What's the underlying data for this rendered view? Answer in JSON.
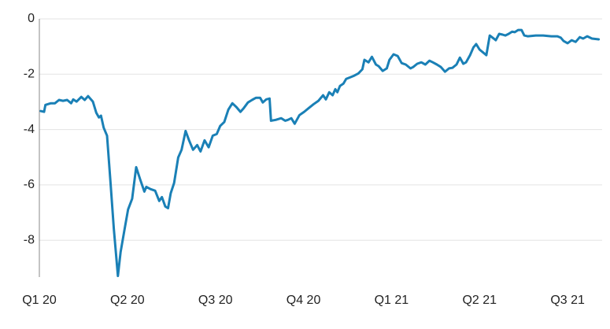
{
  "chart_data": {
    "type": "line",
    "color": "#1a80b6",
    "x": [
      0.2,
      0.7,
      0.9,
      1.7,
      2.3,
      2.9,
      3.5,
      4.1,
      4.7,
      5.0,
      5.5,
      6.2,
      6.7,
      7.2,
      7.9,
      8.4,
      8.8,
      9.1,
      9.5,
      10.0,
      10.5,
      11.0,
      11.6,
      12.0,
      12.6,
      13.1,
      13.7,
      14.3,
      14.9,
      15.5,
      15.8,
      16.4,
      17.1,
      17.7,
      18.1,
      18.6,
      19.0,
      19.4,
      19.9,
      20.5,
      21.0,
      21.6,
      22.1,
      22.7,
      23.3,
      23.8,
      24.4,
      25.0,
      25.6,
      26.2,
      26.7,
      27.3,
      27.9,
      28.5,
      29.1,
      29.7,
      30.2,
      30.8,
      31.4,
      32.0,
      32.6,
      33.0,
      33.5,
      34.0,
      34.2,
      34.9,
      35.7,
      36.3,
      36.7,
      37.2,
      37.7,
      38.4,
      39.1,
      39.8,
      40.5,
      41.2,
      41.9,
      42.3,
      42.8,
      43.3,
      43.7,
      44.0,
      44.4,
      44.9,
      45.3,
      45.9,
      46.5,
      47.1,
      47.7,
      48.0,
      48.6,
      49.1,
      49.7,
      50.1,
      50.7,
      51.3,
      51.7,
      52.3,
      52.9,
      53.5,
      54.1,
      54.8,
      55.2,
      55.8,
      56.4,
      57.0,
      57.6,
      58.1,
      58.7,
      59.3,
      59.9,
      60.5,
      61.0,
      61.6,
      62.1,
      62.6,
      63.0,
      63.6,
      64.1,
      64.5,
      65.0,
      65.6,
      66.0,
      66.5,
      67.1,
      67.4,
      67.9,
      68.4,
      68.8,
      69.3,
      69.8,
      70.2,
      70.7,
      71.2,
      71.6,
      72.1,
      73.3,
      74.4,
      75.6,
      76.5,
      77.0,
      77.4,
      78.0,
      78.6,
      79.2,
      79.8,
      80.3,
      80.9,
      81.6,
      82.6
    ],
    "values": [
      -3.33,
      -3.36,
      -3.11,
      -3.05,
      -3.05,
      -2.93,
      -2.96,
      -2.93,
      -3.05,
      -2.91,
      -2.99,
      -2.82,
      -2.93,
      -2.79,
      -2.99,
      -3.39,
      -3.56,
      -3.5,
      -3.93,
      -4.22,
      -5.87,
      -7.58,
      -9.29,
      -8.43,
      -7.58,
      -6.89,
      -6.5,
      -5.36,
      -5.81,
      -6.24,
      -6.07,
      -6.15,
      -6.21,
      -6.58,
      -6.44,
      -6.78,
      -6.84,
      -6.3,
      -5.93,
      -5.01,
      -4.73,
      -4.05,
      -4.39,
      -4.73,
      -4.56,
      -4.79,
      -4.39,
      -4.64,
      -4.22,
      -4.16,
      -3.87,
      -3.73,
      -3.28,
      -3.05,
      -3.19,
      -3.36,
      -3.22,
      -3.02,
      -2.93,
      -2.85,
      -2.85,
      -3.02,
      -2.91,
      -2.88,
      -3.68,
      -3.65,
      -3.59,
      -3.68,
      -3.65,
      -3.59,
      -3.79,
      -3.48,
      -3.36,
      -3.22,
      -3.08,
      -2.96,
      -2.76,
      -2.91,
      -2.65,
      -2.76,
      -2.54,
      -2.65,
      -2.42,
      -2.34,
      -2.17,
      -2.11,
      -2.05,
      -1.97,
      -1.82,
      -1.48,
      -1.57,
      -1.37,
      -1.65,
      -1.71,
      -1.88,
      -1.79,
      -1.48,
      -1.28,
      -1.34,
      -1.6,
      -1.65,
      -1.79,
      -1.74,
      -1.62,
      -1.57,
      -1.65,
      -1.51,
      -1.57,
      -1.65,
      -1.74,
      -1.91,
      -1.79,
      -1.77,
      -1.65,
      -1.4,
      -1.62,
      -1.57,
      -1.31,
      -1.03,
      -0.91,
      -1.11,
      -1.23,
      -1.31,
      -0.6,
      -0.71,
      -0.77,
      -0.54,
      -0.57,
      -0.6,
      -0.54,
      -0.46,
      -0.48,
      -0.4,
      -0.4,
      -0.6,
      -0.63,
      -0.6,
      -0.6,
      -0.63,
      -0.63,
      -0.68,
      -0.8,
      -0.88,
      -0.77,
      -0.83,
      -0.66,
      -0.71,
      -0.63,
      -0.71,
      -0.74
    ],
    "xlim": [
      0,
      83.1
    ],
    "xticks": [
      {
        "value": 0,
        "label": "Q1 20"
      },
      {
        "value": 13,
        "label": "Q2 20"
      },
      {
        "value": 26,
        "label": "Q3 20"
      },
      {
        "value": 39,
        "label": "Q4 20"
      },
      {
        "value": 52,
        "label": "Q1 21"
      },
      {
        "value": 65,
        "label": "Q2 21"
      },
      {
        "value": 78,
        "label": "Q3 21"
      }
    ],
    "ylim": [
      -9.33,
      0
    ],
    "yticks": [
      0,
      -2,
      -4,
      -6,
      -8
    ],
    "grid": true
  }
}
